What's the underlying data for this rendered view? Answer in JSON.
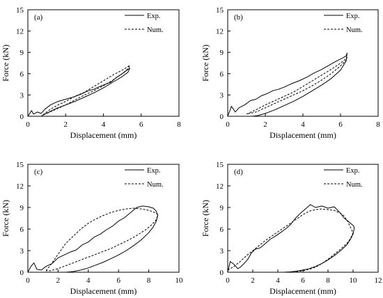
{
  "colors": {
    "exp": "#000000",
    "num": "#000000",
    "axis": "#000000"
  },
  "chart_data": [
    {
      "type": "line",
      "panel_label": "(a)",
      "xlabel": "Displacement (mm)",
      "ylabel": "Force (kN)",
      "xlim": [
        0,
        8
      ],
      "ylim": [
        0,
        15
      ],
      "xticks": [
        0,
        2,
        4,
        6,
        8
      ],
      "yticks": [
        0,
        3,
        6,
        9,
        12,
        15
      ],
      "legend_position": "top-right",
      "grid": false,
      "series": [
        {
          "name": "Exp.",
          "style": "solid",
          "x": [
            0,
            0.2,
            0.3,
            0.5,
            0.7,
            0.9,
            1.2,
            1.6,
            2.0,
            2.4,
            2.8,
            3.2,
            3.5,
            3.8,
            4.1,
            4.4,
            4.7,
            5.0,
            5.3,
            5.4,
            5.3,
            5.0,
            4.5,
            4.0,
            3.5,
            3.0,
            2.5,
            2.0,
            1.5,
            1.2,
            0.9,
            0.7
          ],
          "y": [
            0,
            0.8,
            0.3,
            0.6,
            0.4,
            1.0,
            1.6,
            2.1,
            2.4,
            2.7,
            3.1,
            3.6,
            3.8,
            4.2,
            4.5,
            4.8,
            5.5,
            6.0,
            6.6,
            6.8,
            6.2,
            5.6,
            4.8,
            4.0,
            3.3,
            2.7,
            2.1,
            1.6,
            1.1,
            0.7,
            0.3,
            0.0
          ]
        },
        {
          "name": "Num.",
          "style": "dashed",
          "x": [
            0.8,
            1.2,
            1.6,
            2.0,
            2.5,
            3.0,
            3.5,
            4.0,
            4.5,
            5.0,
            5.3,
            5.4,
            5.3,
            5.0,
            4.5,
            4.0,
            3.5,
            3.0,
            2.5,
            2.0,
            1.5,
            1.0,
            0.8
          ],
          "y": [
            0.2,
            1.0,
            1.6,
            2.1,
            2.8,
            3.4,
            4.2,
            5.0,
            5.8,
            6.5,
            7.0,
            7.2,
            6.7,
            6.0,
            5.1,
            4.3,
            3.6,
            3.0,
            2.3,
            1.6,
            1.0,
            0.4,
            0.2
          ]
        }
      ]
    },
    {
      "type": "line",
      "panel_label": "(b)",
      "xlabel": "Displacement (mm)",
      "ylabel": "Force (kN)",
      "xlim": [
        0,
        8
      ],
      "ylim": [
        0,
        15
      ],
      "xticks": [
        0,
        2,
        4,
        6,
        8
      ],
      "yticks": [
        0,
        3,
        6,
        9,
        12,
        15
      ],
      "legend_position": "top-right",
      "grid": false,
      "series": [
        {
          "name": "Exp.",
          "style": "solid",
          "x": [
            0,
            0.2,
            0.4,
            0.6,
            0.9,
            1.2,
            1.5,
            1.8,
            2.1,
            2.4,
            2.7,
            3.0,
            3.4,
            3.8,
            4.2,
            4.6,
            5.0,
            5.4,
            5.8,
            6.1,
            6.3,
            6.35,
            6.3,
            6.0,
            5.5,
            5.0,
            4.5,
            4.0,
            3.5,
            3.0,
            2.5,
            2.0,
            1.6,
            1.3
          ],
          "y": [
            0,
            1.4,
            0.6,
            1.2,
            1.6,
            2.2,
            2.4,
            2.9,
            3.2,
            3.6,
            3.8,
            4.1,
            4.6,
            5.0,
            5.5,
            6.1,
            6.6,
            7.2,
            7.8,
            8.2,
            8.5,
            8.9,
            7.8,
            6.5,
            5.3,
            4.4,
            3.6,
            2.8,
            2.1,
            1.5,
            0.9,
            0.4,
            0.1,
            0.0
          ]
        },
        {
          "name": "Num.",
          "style": "dashed",
          "x": [
            1.0,
            1.5,
            2.0,
            2.5,
            3.0,
            3.5,
            4.0,
            4.5,
            5.0,
            5.5,
            5.9,
            6.2,
            6.35,
            6.3,
            6.0,
            5.5,
            5.0,
            4.5,
            4.0,
            3.5,
            3.0,
            2.5,
            2.0,
            1.5,
            1.0
          ],
          "y": [
            0.3,
            0.9,
            1.6,
            2.2,
            2.8,
            3.4,
            4.2,
            5.0,
            5.8,
            6.6,
            7.3,
            7.9,
            8.3,
            7.9,
            7.1,
            6.0,
            5.1,
            4.3,
            3.6,
            3.0,
            2.4,
            1.8,
            1.2,
            0.6,
            0.3
          ]
        }
      ]
    },
    {
      "type": "line",
      "panel_label": "(c)",
      "xlabel": "Displacement (mm)",
      "ylabel": "Force (kN)",
      "xlim": [
        0,
        10
      ],
      "ylim": [
        0,
        15
      ],
      "xticks": [
        0,
        2,
        4,
        6,
        8,
        10
      ],
      "yticks": [
        0,
        3,
        6,
        9,
        12,
        15
      ],
      "legend_position": "top-right",
      "grid": false,
      "series": [
        {
          "name": "Exp.",
          "style": "solid",
          "x": [
            0,
            0.2,
            0.4,
            0.6,
            0.9,
            1.2,
            1.6,
            2.0,
            2.4,
            2.8,
            3.2,
            3.6,
            4.0,
            4.4,
            4.8,
            5.2,
            5.6,
            6.0,
            6.4,
            6.8,
            7.2,
            7.6,
            8.0,
            8.3,
            8.5,
            8.6,
            8.5,
            8.3,
            8.0,
            7.5,
            7.0,
            6.5,
            6.0,
            5.5,
            5.0,
            4.5,
            4.0,
            3.5,
            3.0,
            2.5,
            2.0,
            1.6
          ],
          "y": [
            0,
            0.8,
            1.3,
            0.4,
            0.3,
            0.8,
            1.2,
            2.0,
            2.4,
            2.8,
            3.1,
            3.8,
            4.2,
            4.9,
            5.3,
            5.9,
            6.4,
            7.1,
            7.6,
            8.3,
            9.0,
            9.2,
            9.1,
            8.9,
            8.5,
            7.9,
            7.1,
            6.3,
            5.5,
            4.5,
            3.7,
            3.0,
            2.4,
            1.9,
            1.4,
            1.0,
            0.6,
            0.3,
            0.1,
            0.0,
            0.0,
            0.0
          ]
        },
        {
          "name": "Num.",
          "style": "dashed",
          "x": [
            1.2,
            1.5,
            2.0,
            2.5,
            3.0,
            3.5,
            4.0,
            4.5,
            5.0,
            5.5,
            6.0,
            6.5,
            7.0,
            7.5,
            8.0,
            8.4,
            8.6,
            8.5,
            8.2,
            7.8,
            7.2,
            6.6,
            6.0,
            5.5,
            5.0,
            4.5,
            4.0,
            3.5,
            3.0,
            2.5,
            2.0,
            1.5,
            1.2
          ],
          "y": [
            0.2,
            1.0,
            2.5,
            4.0,
            5.0,
            6.0,
            6.8,
            7.4,
            7.9,
            8.3,
            8.6,
            8.8,
            8.9,
            8.8,
            8.6,
            8.3,
            8.0,
            7.3,
            6.6,
            5.9,
            5.1,
            4.4,
            3.8,
            3.3,
            2.9,
            2.5,
            2.1,
            1.7,
            1.3,
            0.9,
            0.5,
            0.2,
            0.2
          ]
        }
      ]
    },
    {
      "type": "line",
      "panel_label": "(d)",
      "xlabel": "Displacement (mm)",
      "ylabel": "Force (kN)",
      "xlim": [
        0,
        12
      ],
      "ylim": [
        0,
        15
      ],
      "xticks": [
        0,
        2,
        4,
        6,
        8,
        10,
        12
      ],
      "yticks": [
        0,
        3,
        6,
        9,
        12,
        15
      ],
      "legend_position": "top-right",
      "grid": false,
      "series": [
        {
          "name": "Exp.",
          "style": "solid",
          "x": [
            0,
            0.2,
            0.5,
            0.8,
            1.0,
            1.3,
            1.6,
            1.9,
            2.2,
            2.6,
            3.0,
            3.4,
            3.8,
            4.2,
            4.6,
            5.0,
            5.4,
            5.8,
            6.2,
            6.6,
            7.0,
            7.5,
            8.0,
            8.5,
            9.0,
            9.3,
            9.6,
            9.8,
            10.0,
            10.1,
            10.0,
            9.8,
            9.5,
            9.0,
            8.5,
            8.0,
            7.5,
            7.0,
            6.5,
            6.0,
            5.5,
            5.0,
            4.5,
            4.0
          ],
          "y": [
            0,
            1.5,
            1.1,
            0.5,
            0.7,
            1.2,
            1.8,
            2.7,
            3.2,
            3.4,
            4.0,
            4.6,
            5.0,
            5.5,
            6.0,
            6.6,
            7.5,
            8.2,
            8.8,
            9.4,
            9.0,
            9.2,
            8.9,
            9.1,
            8.2,
            7.5,
            7.1,
            6.8,
            6.5,
            6.2,
            5.3,
            4.6,
            3.8,
            3.0,
            2.3,
            1.7,
            1.2,
            0.8,
            0.5,
            0.3,
            0.15,
            0.05,
            0.0,
            0.0
          ]
        },
        {
          "name": "Num.",
          "style": "dashed",
          "x": [
            0,
            0.5,
            1.0,
            1.5,
            2.0,
            2.5,
            3.0,
            3.5,
            4.0,
            4.5,
            5.0,
            5.5,
            6.0,
            6.5,
            7.0,
            7.5,
            8.0,
            8.5,
            9.0,
            9.3,
            9.6,
            9.8,
            10.0,
            9.8,
            9.5,
            9.0,
            8.5,
            8.0,
            7.5,
            7.0,
            6.5,
            6.0,
            5.5,
            5.0,
            4.5
          ],
          "y": [
            0.3,
            0.8,
            1.5,
            2.3,
            3.0,
            3.7,
            4.4,
            5.0,
            5.6,
            6.2,
            6.8,
            7.4,
            8.0,
            8.5,
            8.7,
            8.8,
            8.7,
            8.6,
            8.2,
            7.8,
            7.0,
            6.2,
            5.5,
            4.7,
            4.0,
            3.2,
            2.5,
            1.8,
            1.2,
            0.7,
            0.4,
            0.2,
            0.1,
            0.05,
            0.0
          ]
        }
      ]
    }
  ]
}
